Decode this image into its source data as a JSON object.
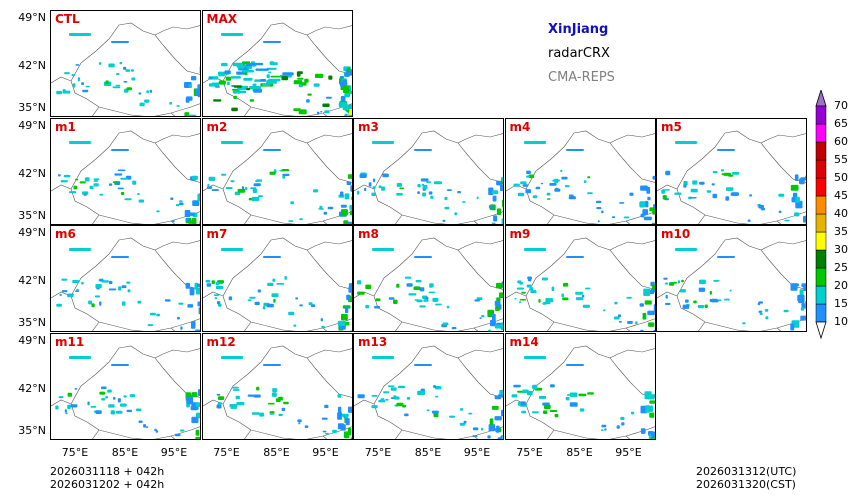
{
  "title": {
    "region": "XinJiang",
    "product": "radarCRX",
    "model": "CMA-REPS"
  },
  "colors": {
    "region": "#1010c0",
    "product": "#000000",
    "model": "#808080",
    "label": "#e00000"
  },
  "chart_data": {
    "type": "map-panels",
    "panels": [
      "CTL",
      "MAX",
      "m1",
      "m2",
      "m3",
      "m4",
      "m5",
      "m6",
      "m7",
      "m8",
      "m9",
      "m10",
      "m11",
      "m12",
      "m13",
      "m14"
    ],
    "lat_ticks": [
      "49°N",
      "42°N",
      "35°N"
    ],
    "lon_ticks": [
      "75°E",
      "85°E",
      "95°E"
    ],
    "colorbar": {
      "levels": [
        "10",
        "15",
        "20",
        "25",
        "30",
        "35",
        "40",
        "45",
        "50",
        "55",
        "60",
        "65",
        "70"
      ],
      "colors": [
        "#1e90ff",
        "#00ced1",
        "#00c800",
        "#008000",
        "#ffff00",
        "#e6b400",
        "#ff8c00",
        "#ff0000",
        "#dc0000",
        "#c00000",
        "#ff00ff",
        "#9400d3",
        "#a070c8"
      ]
    }
  },
  "footer": {
    "init_utc": "2026031118  +  042h",
    "init_cst": "2026031202  +  042h",
    "valid_utc": "2026031312(UTC)",
    "valid_cst": "2026031320(CST)"
  }
}
